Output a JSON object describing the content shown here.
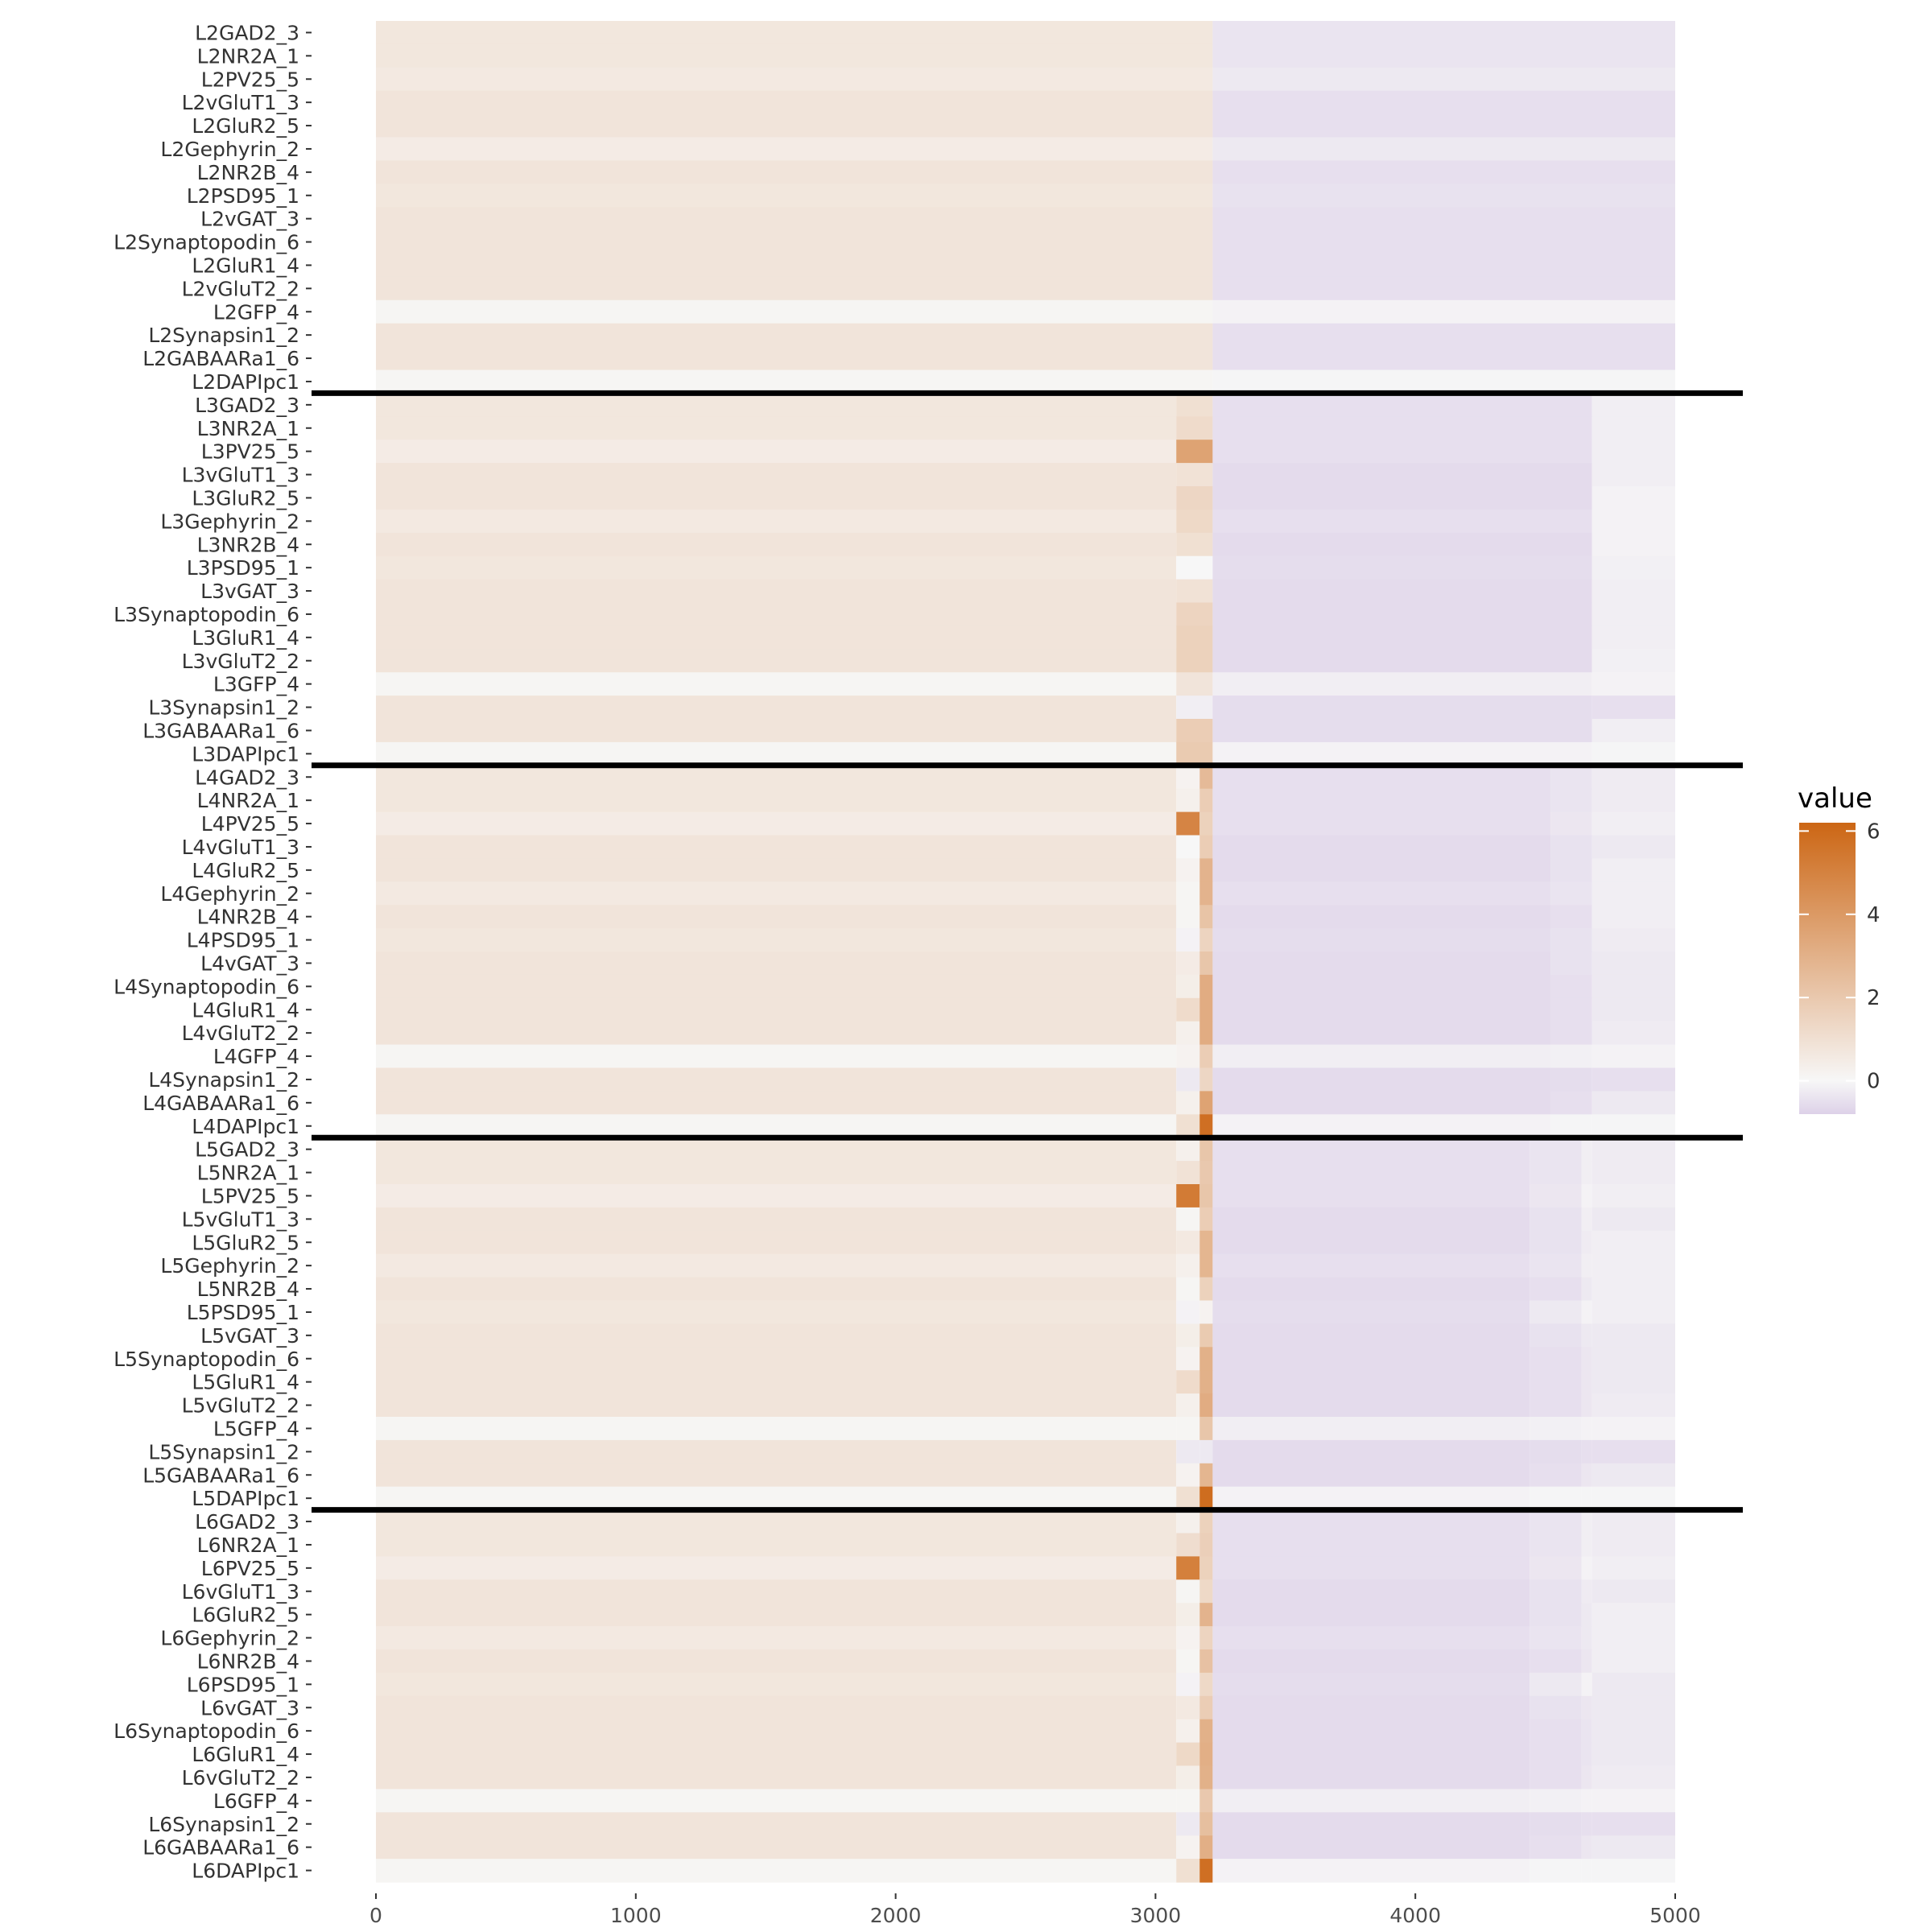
{
  "chart_data": {
    "type": "heatmap",
    "title": "",
    "xlabel": "",
    "ylabel": "",
    "xlim": [
      0,
      5000
    ],
    "x_ticks": [
      "0",
      "1000",
      "2000",
      "3000",
      "4000",
      "5000"
    ],
    "x_tick_values": [
      0,
      1000,
      2000,
      3000,
      4000,
      5000
    ],
    "legend": {
      "title": "value",
      "position": "right",
      "ticks": [
        "6",
        "4",
        "2",
        "0"
      ],
      "tick_values": [
        6,
        4,
        2,
        0
      ],
      "range": [
        -0.8,
        6.2
      ]
    },
    "colors": {
      "low": "#ddd1e8",
      "mid": "#f7f7f7",
      "high": "#cc6614"
    },
    "layer_separators_after": [
      "L2DAPIpc1",
      "L3DAPIpc1",
      "L4DAPIpc1",
      "L5DAPIpc1"
    ],
    "column_segments": {
      "L2": [
        [
          0,
          3220
        ],
        [
          3220,
          5000
        ]
      ],
      "L3": [
        [
          0,
          3080
        ],
        [
          3080,
          3220
        ],
        [
          3220,
          4680
        ],
        [
          4680,
          5000
        ]
      ],
      "L4": [
        [
          0,
          3080
        ],
        [
          3080,
          3170
        ],
        [
          3170,
          3220
        ],
        [
          3220,
          4520
        ],
        [
          4520,
          4680
        ],
        [
          4680,
          5000
        ]
      ],
      "L5": [
        [
          0,
          3080
        ],
        [
          3080,
          3170
        ],
        [
          3170,
          3220
        ],
        [
          3220,
          4440
        ],
        [
          4440,
          4640
        ],
        [
          4640,
          4680
        ],
        [
          4680,
          5000
        ]
      ],
      "L6": [
        [
          0,
          3080
        ],
        [
          3080,
          3170
        ],
        [
          3170,
          3220
        ],
        [
          3220,
          4440
        ],
        [
          4440,
          4640
        ],
        [
          4640,
          4680
        ],
        [
          4680,
          5000
        ]
      ]
    },
    "rows": [
      {
        "label": "L2GAD2_3",
        "values": [
          0.7,
          -0.4
        ]
      },
      {
        "label": "L2NR2A_1",
        "values": [
          0.7,
          -0.4
        ]
      },
      {
        "label": "L2PV25_5",
        "values": [
          0.6,
          -0.3
        ]
      },
      {
        "label": "L2vGluT1_3",
        "values": [
          0.8,
          -0.5
        ]
      },
      {
        "label": "L2GluR2_5",
        "values": [
          0.8,
          -0.5
        ]
      },
      {
        "label": "L2Gephyrin_2",
        "values": [
          0.5,
          -0.3
        ]
      },
      {
        "label": "L2NR2B_4",
        "values": [
          0.8,
          -0.5
        ]
      },
      {
        "label": "L2PSD95_1",
        "values": [
          0.7,
          -0.45
        ]
      },
      {
        "label": "L2vGAT_3",
        "values": [
          0.8,
          -0.5
        ]
      },
      {
        "label": "L2Synaptopodin_6",
        "values": [
          0.8,
          -0.5
        ]
      },
      {
        "label": "L2GluR1_4",
        "values": [
          0.8,
          -0.5
        ]
      },
      {
        "label": "L2vGluT2_2",
        "values": [
          0.8,
          -0.5
        ]
      },
      {
        "label": "L2GFP_4",
        "values": [
          0.1,
          -0.1
        ]
      },
      {
        "label": "L2Synapsin1_2",
        "values": [
          0.8,
          -0.5
        ]
      },
      {
        "label": "L2GABAARa1_6",
        "values": [
          0.8,
          -0.5
        ]
      },
      {
        "label": "L2DAPIpc1",
        "values": [
          0.1,
          -0.05
        ]
      },
      {
        "label": "L3GAD2_3",
        "values": [
          0.7,
          1.0,
          -0.5,
          -0.2
        ]
      },
      {
        "label": "L3NR2A_1",
        "values": [
          0.7,
          1.2,
          -0.5,
          -0.2
        ]
      },
      {
        "label": "L3PV25_5",
        "values": [
          0.5,
          3.6,
          -0.5,
          -0.2
        ]
      },
      {
        "label": "L3vGluT1_3",
        "values": [
          0.8,
          0.9,
          -0.6,
          -0.2
        ]
      },
      {
        "label": "L3GluR2_5",
        "values": [
          0.8,
          1.4,
          -0.6,
          -0.1
        ]
      },
      {
        "label": "L3Gephyrin_2",
        "values": [
          0.6,
          1.3,
          -0.5,
          -0.1
        ]
      },
      {
        "label": "L3NR2B_4",
        "values": [
          0.8,
          1.0,
          -0.6,
          -0.1
        ]
      },
      {
        "label": "L3PSD95_1",
        "values": [
          0.7,
          0.0,
          -0.55,
          -0.15
        ]
      },
      {
        "label": "L3vGAT_3",
        "values": [
          0.8,
          0.9,
          -0.6,
          -0.2
        ]
      },
      {
        "label": "L3Synaptopodin_6",
        "values": [
          0.8,
          1.5,
          -0.6,
          -0.2
        ]
      },
      {
        "label": "L3GluR1_4",
        "values": [
          0.8,
          1.6,
          -0.6,
          -0.2
        ]
      },
      {
        "label": "L3vGluT2_2",
        "values": [
          0.8,
          1.6,
          -0.6,
          -0.15
        ]
      },
      {
        "label": "L3GFP_4",
        "values": [
          0.1,
          0.8,
          -0.2,
          -0.1
        ]
      },
      {
        "label": "L3Synapsin1_2",
        "values": [
          0.8,
          -0.2,
          -0.55,
          -0.5
        ]
      },
      {
        "label": "L3GABAARa1_6",
        "values": [
          0.8,
          1.8,
          -0.55,
          -0.2
        ]
      },
      {
        "label": "L3DAPIpc1",
        "values": [
          0.1,
          1.9,
          -0.1,
          -0.05
        ]
      },
      {
        "label": "L4GAD2_3",
        "values": [
          0.7,
          0.2,
          2.6,
          -0.5,
          -0.4,
          -0.25
        ]
      },
      {
        "label": "L4NR2A_1",
        "values": [
          0.7,
          0.3,
          1.8,
          -0.5,
          -0.4,
          -0.25
        ]
      },
      {
        "label": "L4PV25_5",
        "values": [
          0.5,
          4.9,
          1.6,
          -0.5,
          -0.35,
          -0.2
        ]
      },
      {
        "label": "L4vGluT1_3",
        "values": [
          0.8,
          0.0,
          1.8,
          -0.6,
          -0.45,
          -0.3
        ]
      },
      {
        "label": "L4GluR2_5",
        "values": [
          0.8,
          0.2,
          2.9,
          -0.6,
          -0.45,
          -0.2
        ]
      },
      {
        "label": "L4Gephyrin_2",
        "values": [
          0.6,
          0.1,
          2.9,
          -0.5,
          -0.4,
          -0.2
        ]
      },
      {
        "label": "L4NR2B_4",
        "values": [
          0.8,
          0.1,
          2.2,
          -0.6,
          -0.5,
          -0.2
        ]
      },
      {
        "label": "L4PSD95_1",
        "values": [
          0.7,
          -0.1,
          1.5,
          -0.55,
          -0.45,
          -0.25
        ]
      },
      {
        "label": "L4vGAT_3",
        "values": [
          0.8,
          0.5,
          2.1,
          -0.6,
          -0.45,
          -0.3
        ]
      },
      {
        "label": "L4Synaptopodin_6",
        "values": [
          0.8,
          0.4,
          3.2,
          -0.6,
          -0.5,
          -0.3
        ]
      },
      {
        "label": "L4GluR1_4",
        "values": [
          0.8,
          1.2,
          3.2,
          -0.6,
          -0.5,
          -0.3
        ]
      },
      {
        "label": "L4vGluT2_2",
        "values": [
          0.8,
          0.3,
          3.2,
          -0.6,
          -0.5,
          -0.25
        ]
      },
      {
        "label": "L4GFP_4",
        "values": [
          0.1,
          0.2,
          1.8,
          -0.2,
          -0.15,
          -0.1
        ]
      },
      {
        "label": "L4Synapsin1_2",
        "values": [
          0.8,
          -0.3,
          1.4,
          -0.6,
          -0.55,
          -0.5
        ]
      },
      {
        "label": "L4GABAARa1_6",
        "values": [
          0.8,
          0.3,
          3.6,
          -0.6,
          -0.5,
          -0.3
        ]
      },
      {
        "label": "L4DAPIpc1",
        "values": [
          0.1,
          1.0,
          5.8,
          -0.1,
          -0.05,
          -0.05
        ]
      },
      {
        "label": "L5GAD2_3",
        "values": [
          0.7,
          0.3,
          2.1,
          -0.5,
          -0.4,
          -0.2,
          -0.25
        ]
      },
      {
        "label": "L5NR2A_1",
        "values": [
          0.7,
          0.9,
          2.0,
          -0.5,
          -0.4,
          -0.2,
          -0.25
        ]
      },
      {
        "label": "L5PV25_5",
        "values": [
          0.5,
          5.3,
          2.1,
          -0.5,
          -0.35,
          -0.1,
          -0.2
        ]
      },
      {
        "label": "L5vGluT1_3",
        "values": [
          0.8,
          0.1,
          1.8,
          -0.6,
          -0.45,
          -0.2,
          -0.3
        ]
      },
      {
        "label": "L5GluR2_5",
        "values": [
          0.8,
          0.6,
          2.8,
          -0.6,
          -0.45,
          -0.25,
          -0.2
        ]
      },
      {
        "label": "L5Gephyrin_2",
        "values": [
          0.6,
          0.3,
          2.8,
          -0.5,
          -0.4,
          -0.2,
          -0.2
        ]
      },
      {
        "label": "L5NR2B_4",
        "values": [
          0.8,
          0.1,
          1.6,
          -0.6,
          -0.5,
          -0.3,
          -0.2
        ]
      },
      {
        "label": "L5PSD95_1",
        "values": [
          0.7,
          -0.1,
          0.2,
          -0.55,
          -0.3,
          -0.1,
          -0.2
        ]
      },
      {
        "label": "L5vGAT_3",
        "values": [
          0.8,
          0.4,
          1.9,
          -0.6,
          -0.45,
          -0.3,
          -0.3
        ]
      },
      {
        "label": "L5Synaptopodin_6",
        "values": [
          0.8,
          0.2,
          3.0,
          -0.6,
          -0.5,
          -0.35,
          -0.3
        ]
      },
      {
        "label": "L5GluR1_4",
        "values": [
          0.8,
          1.2,
          3.0,
          -0.6,
          -0.5,
          -0.35,
          -0.3
        ]
      },
      {
        "label": "L5vGluT2_2",
        "values": [
          0.8,
          0.3,
          3.2,
          -0.6,
          -0.5,
          -0.35,
          -0.25
        ]
      },
      {
        "label": "L5GFP_4",
        "values": [
          0.1,
          0.1,
          2.1,
          -0.2,
          -0.15,
          -0.1,
          -0.1
        ]
      },
      {
        "label": "L5Synapsin1_2",
        "values": [
          0.8,
          -0.3,
          -0.3,
          -0.6,
          -0.55,
          -0.5,
          -0.5
        ]
      },
      {
        "label": "L5GABAARa1_6",
        "values": [
          0.8,
          0.2,
          2.8,
          -0.6,
          -0.5,
          -0.35,
          -0.3
        ]
      },
      {
        "label": "L5DAPIpc1",
        "values": [
          0.1,
          1.0,
          5.9,
          -0.1,
          -0.05,
          -0.05,
          -0.05
        ]
      },
      {
        "label": "L6GAD2_3",
        "values": [
          0.7,
          0.3,
          1.6,
          -0.5,
          -0.4,
          -0.2,
          -0.25
        ]
      },
      {
        "label": "L6NR2A_1",
        "values": [
          0.7,
          1.1,
          1.7,
          -0.5,
          -0.4,
          -0.2,
          -0.25
        ]
      },
      {
        "label": "L6PV25_5",
        "values": [
          0.5,
          5.1,
          1.6,
          -0.5,
          -0.35,
          -0.1,
          -0.2
        ]
      },
      {
        "label": "L6vGluT1_3",
        "values": [
          0.8,
          0.1,
          1.3,
          -0.6,
          -0.45,
          -0.25,
          -0.3
        ]
      },
      {
        "label": "L6GluR2_5",
        "values": [
          0.8,
          0.4,
          2.9,
          -0.6,
          -0.45,
          -0.3,
          -0.2
        ]
      },
      {
        "label": "L6Gephyrin_2",
        "values": [
          0.6,
          0.2,
          1.5,
          -0.5,
          -0.4,
          -0.3,
          -0.2
        ]
      },
      {
        "label": "L6NR2B_4",
        "values": [
          0.8,
          0.1,
          2.3,
          -0.6,
          -0.5,
          -0.35,
          -0.2
        ]
      },
      {
        "label": "L6PSD95_1",
        "values": [
          0.7,
          -0.1,
          1.3,
          -0.55,
          -0.3,
          -0.1,
          -0.3
        ]
      },
      {
        "label": "L6vGAT_3",
        "values": [
          0.8,
          0.6,
          1.8,
          -0.6,
          -0.45,
          -0.35,
          -0.3
        ]
      },
      {
        "label": "L6Synaptopodin_6",
        "values": [
          0.8,
          0.3,
          3.0,
          -0.6,
          -0.5,
          -0.4,
          -0.3
        ]
      },
      {
        "label": "L6GluR1_4",
        "values": [
          0.8,
          1.3,
          3.1,
          -0.6,
          -0.5,
          -0.4,
          -0.3
        ]
      },
      {
        "label": "L6vGluT2_2",
        "values": [
          0.8,
          0.4,
          3.0,
          -0.6,
          -0.5,
          -0.35,
          -0.25
        ]
      },
      {
        "label": "L6GFP_4",
        "values": [
          0.1,
          0.1,
          2.0,
          -0.2,
          -0.15,
          -0.1,
          -0.1
        ]
      },
      {
        "label": "L6Synapsin1_2",
        "values": [
          0.8,
          -0.3,
          2.4,
          -0.6,
          -0.55,
          -0.5,
          -0.5
        ]
      },
      {
        "label": "L6GABAARa1_6",
        "values": [
          0.8,
          0.2,
          3.1,
          -0.6,
          -0.5,
          -0.35,
          -0.3
        ]
      },
      {
        "label": "L6DAPIpc1",
        "values": [
          0.1,
          1.0,
          5.8,
          -0.1,
          -0.05,
          -0.05,
          -0.05
        ]
      }
    ]
  }
}
